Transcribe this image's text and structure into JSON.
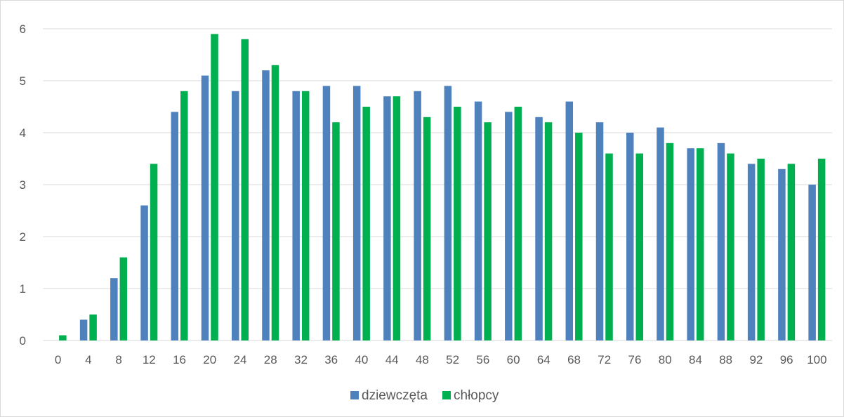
{
  "chart_data": {
    "type": "bar",
    "title": "",
    "xlabel": "",
    "ylabel": "",
    "ylim": [
      0,
      6
    ],
    "yticks": [
      0,
      1,
      2,
      3,
      4,
      5,
      6
    ],
    "grid": true,
    "legend_position": "bottom",
    "categories": [
      "0",
      "4",
      "8",
      "12",
      "16",
      "20",
      "24",
      "28",
      "32",
      "36",
      "40",
      "44",
      "48",
      "52",
      "56",
      "60",
      "64",
      "68",
      "72",
      "76",
      "80",
      "84",
      "88",
      "92",
      "96",
      "100"
    ],
    "series": [
      {
        "name": "dziewczęta",
        "color": "#4f81bd",
        "values": [
          0,
          0.4,
          1.2,
          2.6,
          4.4,
          5.1,
          4.8,
          5.2,
          4.8,
          4.9,
          4.9,
          4.7,
          4.8,
          4.9,
          4.6,
          4.4,
          4.3,
          4.6,
          4.2,
          4.0,
          4.1,
          3.7,
          3.8,
          3.4,
          3.3,
          3.0
        ]
      },
      {
        "name": "chłopcy",
        "color": "#00b050",
        "values": [
          0.1,
          0.5,
          1.6,
          3.4,
          4.8,
          5.9,
          5.8,
          5.3,
          4.8,
          4.2,
          4.5,
          4.7,
          4.3,
          4.5,
          4.2,
          4.5,
          4.2,
          4.0,
          3.6,
          3.6,
          3.8,
          3.7,
          3.6,
          3.5,
          3.4,
          3.5
        ]
      }
    ]
  }
}
